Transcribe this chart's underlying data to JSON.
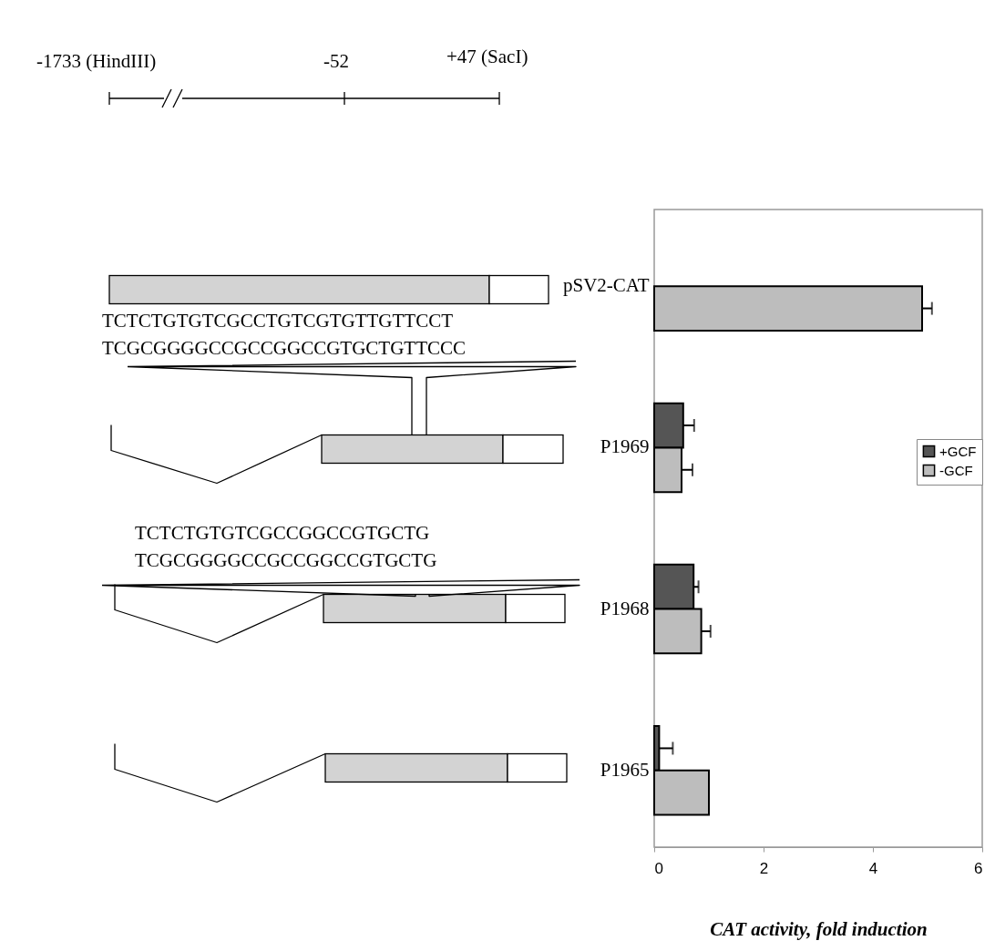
{
  "chart_data": {
    "type": "bar",
    "orientation": "horizontal",
    "categories": [
      "pSV2-CAT",
      "P1969",
      "P1968",
      "P1965"
    ],
    "series": [
      {
        "name": "+GCF",
        "color": "#555555",
        "values": [
          null,
          0.53,
          0.72,
          0.09
        ],
        "errors": [
          null,
          [
            0.53,
            0.73
          ],
          [
            0.72,
            0.81
          ],
          [
            0.09,
            0.34
          ]
        ]
      },
      {
        "name": "-GCF",
        "color": "#bdbdbd",
        "values": [
          4.9,
          0.5,
          0.86,
          1.0
        ],
        "errors": [
          [
            4.9,
            5.08
          ],
          [
            0.5,
            0.7
          ],
          [
            0.86,
            1.03
          ],
          null
        ]
      }
    ],
    "xlabel": "CAT activity, fold induction",
    "xlim": [
      0,
      6
    ],
    "xticks": [
      0,
      2,
      4,
      6
    ],
    "grid": false,
    "legend": "right",
    "annotations": [
      "-1733 (HindIII)",
      "-52",
      "+47 (SacI)",
      "TCTCTGTGTCGCCTGTCGTGTTGTTCCT",
      "TCGCGGGGCCGCCGGCCGTGCTGTTCCC",
      "TCTCTGTGTCGCCGGCCGTGCTG",
      "TCGCGGGGCCGCCGGCCGTGCTG"
    ]
  }
}
